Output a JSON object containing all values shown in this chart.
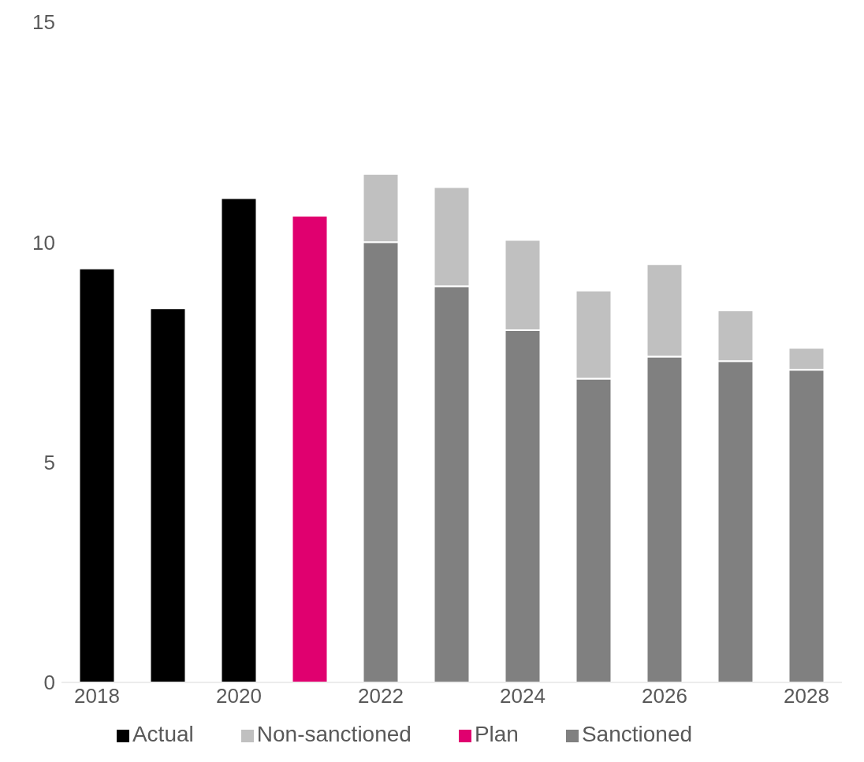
{
  "chart_data": {
    "type": "bar",
    "stacked": true,
    "categories": [
      "2018",
      null,
      "2020",
      null,
      "2022",
      null,
      "2024",
      null,
      "2026",
      null,
      "2028"
    ],
    "series": [
      {
        "name": "Actual",
        "color": "#000000",
        "values": [
          9.4,
          8.5,
          11.0,
          null,
          null,
          null,
          null,
          null,
          null,
          null,
          null
        ]
      },
      {
        "name": "Plan",
        "color": "#e0006f",
        "values": [
          null,
          null,
          null,
          10.6,
          null,
          null,
          null,
          null,
          null,
          null,
          null
        ]
      },
      {
        "name": "Sanctioned",
        "color": "#808080",
        "values": [
          null,
          null,
          null,
          null,
          10.0,
          9.0,
          8.0,
          6.9,
          7.4,
          7.3,
          7.1
        ]
      },
      {
        "name": "Non-sanctioned",
        "color": "#c0c0c0",
        "values": [
          null,
          null,
          null,
          null,
          1.55,
          2.25,
          2.05,
          2.0,
          2.1,
          1.15,
          0.5
        ]
      }
    ],
    "ylim": [
      0,
      15
    ],
    "yticks": [
      0,
      5,
      10,
      15
    ],
    "grid": false,
    "legend": "bottom"
  }
}
